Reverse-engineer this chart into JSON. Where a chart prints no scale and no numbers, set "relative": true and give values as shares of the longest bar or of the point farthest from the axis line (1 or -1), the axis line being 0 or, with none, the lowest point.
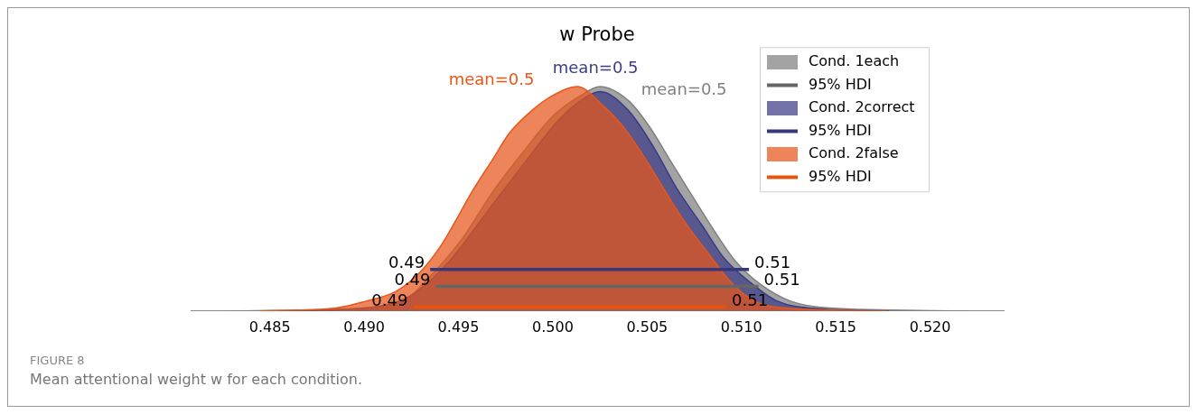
{
  "chart_data": {
    "type": "area",
    "title": "w Probe",
    "relative": true,
    "xlim": [
      0.4808,
      0.5239
    ],
    "xticks": [
      {
        "value": 0.485,
        "label": "0.485"
      },
      {
        "value": 0.49,
        "label": "0.490"
      },
      {
        "value": 0.495,
        "label": "0.495"
      },
      {
        "value": 0.5,
        "label": "0.500"
      },
      {
        "value": 0.505,
        "label": "0.505"
      },
      {
        "value": 0.51,
        "label": "0.510"
      },
      {
        "value": 0.515,
        "label": "0.515"
      },
      {
        "value": 0.52,
        "label": "0.520"
      }
    ],
    "legend": "top right",
    "series": [
      {
        "name": "Cond. 1each",
        "color": "#808080",
        "x": [
          0.4829,
          0.489,
          0.492,
          0.4936,
          0.4952,
          0.4968,
          0.4984,
          0.5,
          0.5014,
          0.5025,
          0.504,
          0.5051,
          0.5062,
          0.5075,
          0.5086,
          0.5097,
          0.511,
          0.5126,
          0.5147,
          0.522
        ],
        "values": [
          0,
          0.009,
          0.044,
          0.163,
          0.322,
          0.529,
          0.705,
          0.868,
          0.956,
          1,
          0.938,
          0.824,
          0.674,
          0.498,
          0.352,
          0.22,
          0.119,
          0.044,
          0.013,
          0
        ]
      },
      {
        "name": "95% HDI",
        "type": "line",
        "color": "#666666",
        "x": [
          0.4938,
          0.5109
        ],
        "values": [
          0.11,
          0.11
        ]
      },
      {
        "name": "Cond. 2correct",
        "color": "#3b3c86",
        "x": [
          0.4855,
          0.49,
          0.4925,
          0.4945,
          0.4965,
          0.4985,
          0.5003,
          0.5017,
          0.5025,
          0.504,
          0.5053,
          0.5066,
          0.5079,
          0.5091,
          0.5104,
          0.5119,
          0.5142,
          0.5178
        ],
        "values": [
          0,
          0.013,
          0.07,
          0.22,
          0.44,
          0.66,
          0.85,
          0.95,
          0.978,
          0.894,
          0.736,
          0.542,
          0.383,
          0.233,
          0.132,
          0.044,
          0.009,
          0
        ]
      },
      {
        "name": "95% HDI",
        "type": "line",
        "color": "#36377d",
        "x": [
          0.4935,
          0.5104
        ],
        "values": [
          0.185,
          0.185
        ]
      },
      {
        "name": "Cond. 2false",
        "color": "#e8561a",
        "x": [
          0.4845,
          0.4885,
          0.4901,
          0.4917,
          0.493,
          0.4941,
          0.4949,
          0.4957,
          0.4968,
          0.4977,
          0.4989,
          0.5,
          0.5013,
          0.5027,
          0.5037,
          0.5048,
          0.5059,
          0.507,
          0.5083,
          0.5094,
          0.5107,
          0.5123,
          0.5177
        ],
        "values": [
          0,
          0.013,
          0.044,
          0.088,
          0.176,
          0.295,
          0.41,
          0.529,
          0.674,
          0.793,
          0.894,
          0.96,
          1,
          0.912,
          0.824,
          0.692,
          0.542,
          0.396,
          0.251,
          0.132,
          0.044,
          0.013,
          0
        ]
      },
      {
        "name": "95% HDI",
        "type": "line",
        "color": "#e4560e",
        "x": [
          0.4926,
          0.5092
        ],
        "values": [
          0.018,
          0.018
        ]
      }
    ],
    "annotations": [
      "mean=0.5",
      "mean=0.5",
      "mean=0.5",
      {
        "text": "0.49",
        "x": 0.4935,
        "y": 0.185
      },
      {
        "text": "0.51",
        "x": 0.5104,
        "y": 0.185
      },
      {
        "text": "0.49",
        "x": 0.4938,
        "y": 0.11
      },
      {
        "text": "0.51",
        "x": 0.5109,
        "y": 0.11
      },
      {
        "text": "0.49",
        "x": 0.4926,
        "y": 0.018
      },
      {
        "text": "0.51",
        "x": 0.5092,
        "y": 0.018
      },
      "FIGURE 8",
      "Mean attentional weight w for each condition."
    ]
  }
}
